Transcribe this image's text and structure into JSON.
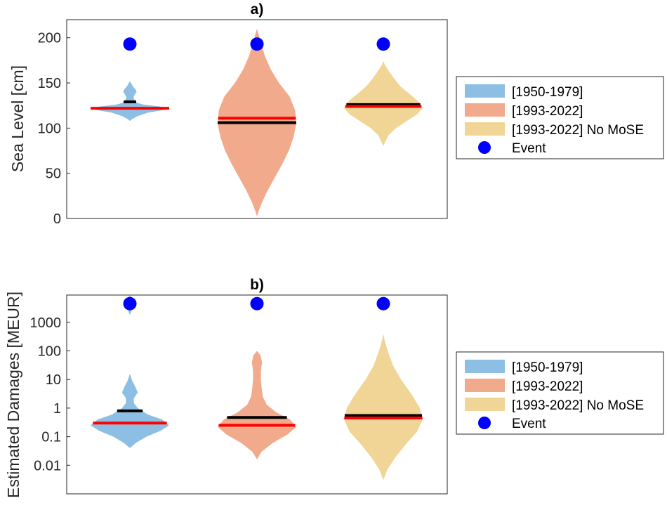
{
  "colors": {
    "period_1950": "#8cbfe3",
    "period_1993": "#f2aa8c",
    "period_nomose": "#f0d596",
    "median": "#ff0000",
    "mean": "#000000",
    "event": "#0000ff"
  },
  "legend": {
    "items": [
      {
        "label": "[1950-1979]",
        "color": "#8cbfe3",
        "kind": "patch"
      },
      {
        "label": "[1993-2022]",
        "color": "#f2aa8c",
        "kind": "patch"
      },
      {
        "label": "[1993-2022] No MoSE",
        "color": "#f0d596",
        "kind": "patch"
      },
      {
        "label": "Event",
        "color": "#0000ff",
        "kind": "marker"
      }
    ]
  },
  "chart_data": [
    {
      "type": "violin",
      "title": "a)",
      "ylabel": "Sea Level [cm]",
      "xlabel": "",
      "yscale": "linear",
      "ylim": [
        0,
        220
      ],
      "yticks": [
        0,
        50,
        100,
        150,
        200
      ],
      "ytick_labels": [
        "0",
        "50",
        "100",
        "150",
        "200"
      ],
      "grid": false,
      "legend_position": "right",
      "series": [
        {
          "name": "[1950-1979]",
          "color": "#8cbfe3",
          "median": 122,
          "mean": 129,
          "event": 193,
          "density": [
            [
              108,
              0.0
            ],
            [
              110,
              0.06
            ],
            [
              113,
              0.18
            ],
            [
              117,
              0.45
            ],
            [
              120,
              0.85
            ],
            [
              122,
              1.0
            ],
            [
              124,
              0.75
            ],
            [
              126,
              0.35
            ],
            [
              128,
              0.18
            ],
            [
              131,
              0.12
            ],
            [
              134,
              0.09
            ],
            [
              137,
              0.12
            ],
            [
              140,
              0.17
            ],
            [
              143,
              0.14
            ],
            [
              146,
              0.08
            ],
            [
              149,
              0.04
            ],
            [
              152,
              0.0
            ]
          ]
        },
        {
          "name": "[1993-2022]",
          "color": "#f2aa8c",
          "median": 111,
          "mean": 106,
          "event": 193,
          "density": [
            [
              2,
              0.0
            ],
            [
              8,
              0.04
            ],
            [
              18,
              0.13
            ],
            [
              30,
              0.26
            ],
            [
              45,
              0.45
            ],
            [
              60,
              0.64
            ],
            [
              75,
              0.81
            ],
            [
              90,
              0.93
            ],
            [
              105,
              1.0
            ],
            [
              120,
              0.97
            ],
            [
              135,
              0.83
            ],
            [
              150,
              0.56
            ],
            [
              165,
              0.35
            ],
            [
              180,
              0.2
            ],
            [
              195,
              0.1
            ],
            [
              210,
              0.0
            ]
          ]
        },
        {
          "name": "[1993-2022] No MoSE",
          "color": "#f0d596",
          "median": 124,
          "mean": 126,
          "event": 193,
          "density": [
            [
              80,
              0.0
            ],
            [
              85,
              0.05
            ],
            [
              92,
              0.13
            ],
            [
              100,
              0.32
            ],
            [
              108,
              0.6
            ],
            [
              115,
              0.85
            ],
            [
              122,
              1.0
            ],
            [
              130,
              0.88
            ],
            [
              138,
              0.66
            ],
            [
              146,
              0.44
            ],
            [
              155,
              0.27
            ],
            [
              163,
              0.14
            ],
            [
              170,
              0.04
            ],
            [
              174,
              0.0
            ]
          ]
        }
      ]
    },
    {
      "type": "violin",
      "title": "b)",
      "ylabel": "Estimated Damages [MEUR]",
      "xlabel": "",
      "yscale": "log",
      "ylim": [
        0.001,
        9000
      ],
      "yticks": [
        0.01,
        0.1,
        1,
        10,
        100,
        1000
      ],
      "ytick_labels": [
        "0.01",
        "0.1",
        "1",
        "10",
        "100",
        "1000"
      ],
      "grid": false,
      "legend_position": "right",
      "series": [
        {
          "name": "[1950-1979]",
          "color": "#8cbfe3",
          "median": 0.3,
          "mean": 0.8,
          "event": 4500,
          "density": [
            [
              0.04,
              0.0
            ],
            [
              0.06,
              0.15
            ],
            [
              0.1,
              0.42
            ],
            [
              0.16,
              0.78
            ],
            [
              0.25,
              1.0
            ],
            [
              0.4,
              0.82
            ],
            [
              0.6,
              0.45
            ],
            [
              1.0,
              0.2
            ],
            [
              1.5,
              0.1
            ],
            [
              2.2,
              0.1
            ],
            [
              3.5,
              0.2
            ],
            [
              5.5,
              0.14
            ],
            [
              9,
              0.06
            ],
            [
              16,
              0.0
            ],
            [
              1800,
              0.0
            ],
            [
              3000,
              0.06
            ],
            [
              6000,
              0.08
            ],
            [
              9000,
              0.0
            ]
          ]
        },
        {
          "name": "[1993-2022]",
          "color": "#f2aa8c",
          "median": 0.25,
          "mean": 0.47,
          "event": 4500,
          "density": [
            [
              0.016,
              0.0
            ],
            [
              0.03,
              0.12
            ],
            [
              0.06,
              0.4
            ],
            [
              0.12,
              0.78
            ],
            [
              0.22,
              1.0
            ],
            [
              0.4,
              0.84
            ],
            [
              0.7,
              0.5
            ],
            [
              1.3,
              0.25
            ],
            [
              2.5,
              0.15
            ],
            [
              5,
              0.12
            ],
            [
              10,
              0.1
            ],
            [
              20,
              0.1
            ],
            [
              40,
              0.13
            ],
            [
              70,
              0.09
            ],
            [
              100,
              0.0
            ]
          ]
        },
        {
          "name": "[1993-2022] No MoSE",
          "color": "#f0d596",
          "median": 0.45,
          "mean": 0.55,
          "event": 4500,
          "density": [
            [
              0.003,
              0.0
            ],
            [
              0.007,
              0.1
            ],
            [
              0.02,
              0.32
            ],
            [
              0.06,
              0.6
            ],
            [
              0.15,
              0.86
            ],
            [
              0.4,
              1.0
            ],
            [
              1.0,
              0.93
            ],
            [
              3,
              0.72
            ],
            [
              10,
              0.45
            ],
            [
              30,
              0.25
            ],
            [
              100,
              0.11
            ],
            [
              250,
              0.03
            ],
            [
              400,
              0.0
            ]
          ]
        }
      ]
    }
  ]
}
